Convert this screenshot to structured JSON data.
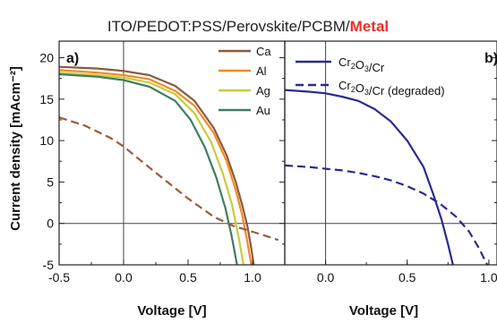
{
  "figure": {
    "title_prefix": "ITO/PEDOT:PSS/Perovskite/PCBM/",
    "title_highlight": "Metal",
    "highlight_color": "#e8302a",
    "ylabel": "Current density [mAcm⁻²]"
  },
  "chart_data": [
    {
      "type": "line",
      "panel_label": "a)",
      "xlabel": "Voltage [V]",
      "ylabel": "Current density [mAcm⁻²]",
      "xlim": [
        -0.5,
        1.25
      ],
      "ylim": [
        -5,
        22
      ],
      "xticks": [
        -0.5,
        0.0,
        0.5,
        1.0
      ],
      "xtick_labels": [
        "-0.5",
        "0.0",
        "0.5",
        "1.0"
      ],
      "yticks": [
        -5,
        0,
        5,
        10,
        15,
        20
      ],
      "ytick_labels": [
        "-5",
        "0",
        "5",
        "10",
        "15",
        "20"
      ],
      "legend_position": "top-right",
      "series": [
        {
          "name": "Ca",
          "color": "#8b5a3c",
          "dash": false,
          "x": [
            -0.5,
            -0.2,
            0.0,
            0.2,
            0.4,
            0.55,
            0.7,
            0.8,
            0.87,
            0.92,
            0.96,
            0.99,
            1.01
          ],
          "y": [
            18.9,
            18.7,
            18.4,
            17.9,
            16.6,
            14.8,
            11.5,
            8.2,
            5.0,
            2.2,
            -0.3,
            -3.0,
            -5.0
          ]
        },
        {
          "name": "Al",
          "color": "#f08a24",
          "dash": false,
          "x": [
            -0.5,
            -0.2,
            0.0,
            0.2,
            0.4,
            0.55,
            0.7,
            0.8,
            0.87,
            0.92,
            0.96,
            0.99
          ],
          "y": [
            18.5,
            18.2,
            17.9,
            17.4,
            16.0,
            14.2,
            10.9,
            7.5,
            4.0,
            1.0,
            -2.2,
            -5.0
          ]
        },
        {
          "name": "Ag",
          "color": "#c8cc3c",
          "dash": false,
          "x": [
            -0.5,
            -0.2,
            0.0,
            0.2,
            0.4,
            0.55,
            0.68,
            0.77,
            0.84,
            0.89,
            0.93
          ],
          "y": [
            18.2,
            17.9,
            17.6,
            17.0,
            15.6,
            13.3,
            9.8,
            6.0,
            2.3,
            -1.5,
            -5.0
          ]
        },
        {
          "name": "Au",
          "color": "#3e7d64",
          "dash": false,
          "x": [
            -0.5,
            -0.2,
            0.0,
            0.2,
            0.4,
            0.52,
            0.63,
            0.72,
            0.79,
            0.84,
            0.88
          ],
          "y": [
            18.0,
            17.7,
            17.3,
            16.5,
            14.8,
            12.5,
            9.2,
            5.5,
            1.8,
            -1.7,
            -5.0
          ]
        },
        {
          "name": "",
          "color": "#9b5a40",
          "dash": true,
          "x": [
            -0.5,
            -0.3,
            -0.1,
            0.0,
            0.1,
            0.3,
            0.5,
            0.7,
            0.85,
            1.0,
            1.1,
            1.2
          ],
          "y": [
            12.8,
            11.8,
            10.3,
            9.3,
            8.0,
            5.5,
            3.0,
            0.8,
            -0.3,
            -1.0,
            -1.5,
            -2.0
          ]
        }
      ]
    },
    {
      "type": "line",
      "panel_label": "b)",
      "xlabel": "Voltage [V]",
      "xlim": [
        -0.25,
        1.05
      ],
      "ylim": [
        -5,
        22
      ],
      "xticks": [
        0.0,
        0.5,
        1.0
      ],
      "xtick_labels": [
        "0.0",
        "0.5",
        "1.0"
      ],
      "legend_position": "top",
      "series": [
        {
          "name": "Cr₂O₃/Cr",
          "color": "#2a2b8e",
          "dash": false,
          "x": [
            -0.25,
            -0.1,
            0.0,
            0.1,
            0.2,
            0.3,
            0.4,
            0.5,
            0.6,
            0.66,
            0.71,
            0.75,
            0.78
          ],
          "y": [
            16.1,
            15.9,
            15.7,
            15.3,
            14.8,
            13.8,
            12.3,
            10.0,
            6.8,
            3.5,
            0.5,
            -2.5,
            -5.0
          ]
        },
        {
          "name": "Cr₂O₃/Cr (degraded)",
          "color": "#2a2b8e",
          "dash": true,
          "x": [
            -0.25,
            -0.1,
            0.0,
            0.1,
            0.2,
            0.3,
            0.4,
            0.5,
            0.6,
            0.7,
            0.8,
            0.88,
            0.94,
            0.99
          ],
          "y": [
            7.0,
            6.8,
            6.6,
            6.4,
            6.1,
            5.7,
            5.2,
            4.5,
            3.6,
            2.4,
            0.8,
            -1.0,
            -3.0,
            -5.0
          ]
        }
      ]
    }
  ]
}
